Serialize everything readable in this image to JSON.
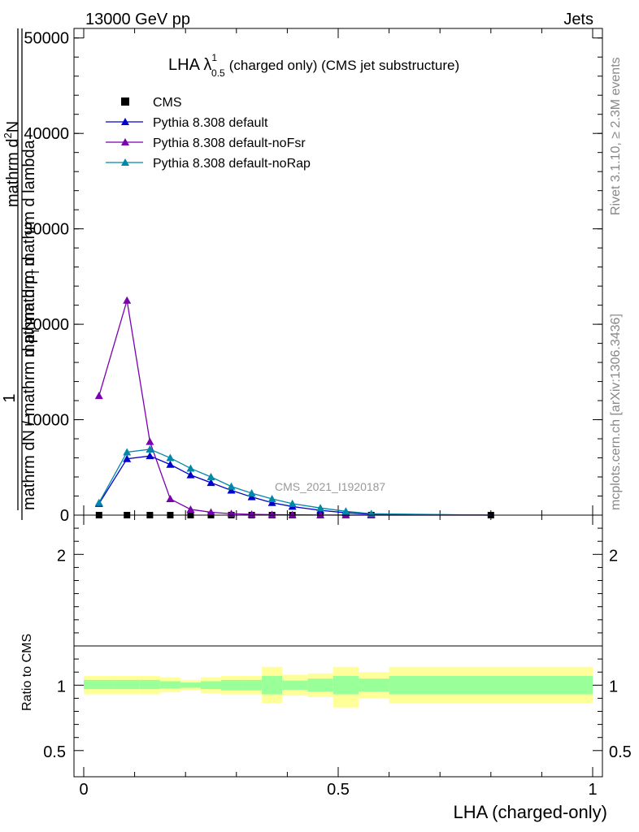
{
  "header": {
    "left": "13000 GeV pp",
    "right": "Jets"
  },
  "side": {
    "rivet": "Rivet 3.1.10, ≥ 2.3M events",
    "mcplots": "mcplots.cern.ch [arXiv:1306.3436]"
  },
  "colors": {
    "cms": "#000000",
    "default": "#0000cc",
    "noFsr": "#7a00b0",
    "noRap": "#0088aa",
    "band_inner": "#99ff99",
    "band_outer": "#ffff99"
  },
  "chart_data": [
    {
      "type": "line",
      "panel": "main",
      "title": "LHA λ",
      "title_sup": "1",
      "title_sub": "0.5",
      "title_rest": "(charged only) (CMS jet substructure)",
      "watermark": "CMS_2021_I1920187",
      "ylabel_numerator": "1",
      "ylabel_denominator": "mathrm dN / mathrm d p",
      "ylabel_denominator_sub": "T",
      "ylabel_denominator_rest": "mathrm d",
      "ylabel_mid": "mathrm d",
      "ylabel_mid_sup": "2",
      "ylabel_top": "N",
      "ylabel_main": "mathrm d p",
      "ylabel_main_sub": "T",
      "ylabel_main_rest": "mathrm d lambda",
      "ylim": [
        0,
        51000
      ],
      "xlim": [
        0,
        1
      ],
      "yticks": [
        {
          "v": 0,
          "label": "0"
        },
        {
          "v": 10000,
          "label": "10000"
        },
        {
          "v": 20000,
          "label": "20000"
        },
        {
          "v": 30000,
          "label": "30000"
        },
        {
          "v": 40000,
          "label": "40000"
        },
        {
          "v": 50000,
          "label": "50000"
        }
      ],
      "legend_position": "top-left",
      "series": [
        {
          "name": "CMS",
          "marker": "square",
          "x": [
            0.03,
            0.085,
            0.13,
            0.17,
            0.21,
            0.25,
            0.29,
            0.33,
            0.37,
            0.41,
            0.465,
            0.515,
            0.565,
            0.8
          ],
          "y": [
            0,
            0,
            0,
            0,
            0,
            0,
            0,
            0,
            0,
            0,
            0,
            0,
            0,
            0
          ]
        },
        {
          "name": "Pythia 8.308 default",
          "marker": "triangle",
          "x": [
            0.03,
            0.085,
            0.13,
            0.17,
            0.21,
            0.25,
            0.29,
            0.33,
            0.37,
            0.41,
            0.465,
            0.515,
            0.565,
            0.8
          ],
          "y": [
            1200,
            5900,
            6200,
            5300,
            4200,
            3400,
            2600,
            1900,
            1300,
            900,
            500,
            250,
            100,
            0
          ]
        },
        {
          "name": "Pythia 8.308 default-noFsr",
          "marker": "triangle",
          "x": [
            0.03,
            0.085,
            0.13,
            0.17,
            0.21,
            0.25,
            0.29,
            0.33,
            0.37,
            0.41,
            0.465,
            0.515,
            0.565,
            0.8
          ],
          "y": [
            12500,
            22500,
            7700,
            1700,
            600,
            300,
            150,
            80,
            50,
            30,
            10,
            5,
            0,
            0
          ]
        },
        {
          "name": "Pythia 8.308 default-noRap",
          "marker": "triangle",
          "x": [
            0.03,
            0.085,
            0.13,
            0.17,
            0.21,
            0.25,
            0.29,
            0.33,
            0.37,
            0.41,
            0.465,
            0.515,
            0.565,
            0.8
          ],
          "y": [
            1300,
            6600,
            6900,
            6000,
            4900,
            4000,
            3000,
            2300,
            1700,
            1200,
            750,
            400,
            150,
            0
          ]
        }
      ]
    },
    {
      "type": "area",
      "panel": "ratio",
      "ylabel": "Ratio to CMS",
      "xlabel": "LHA (charged-only)",
      "ylim": [
        0.3,
        2.3
      ],
      "xlim": [
        0,
        1
      ],
      "yticks": [
        {
          "v": 0.5,
          "label": "0.5"
        },
        {
          "v": 1,
          "label": "1"
        },
        {
          "v": 2,
          "label": "2"
        }
      ],
      "xticks": [
        {
          "v": 0,
          "label": "0"
        },
        {
          "v": 0.5,
          "label": "0.5"
        },
        {
          "v": 1,
          "label": "1"
        }
      ],
      "bins": [
        {
          "x0": 0.0,
          "x1": 0.06,
          "inner": [
            0.97,
            1.04
          ],
          "outer": [
            0.93,
            1.07
          ]
        },
        {
          "x0": 0.06,
          "x1": 0.11,
          "inner": [
            0.97,
            1.04
          ],
          "outer": [
            0.93,
            1.07
          ]
        },
        {
          "x0": 0.11,
          "x1": 0.15,
          "inner": [
            0.97,
            1.04
          ],
          "outer": [
            0.93,
            1.07
          ]
        },
        {
          "x0": 0.15,
          "x1": 0.19,
          "inner": [
            0.975,
            1.03
          ],
          "outer": [
            0.945,
            1.06
          ]
        },
        {
          "x0": 0.19,
          "x1": 0.23,
          "inner": [
            0.98,
            1.02
          ],
          "outer": [
            0.96,
            1.04
          ]
        },
        {
          "x0": 0.23,
          "x1": 0.27,
          "inner": [
            0.97,
            1.03
          ],
          "outer": [
            0.94,
            1.06
          ]
        },
        {
          "x0": 0.27,
          "x1": 0.31,
          "inner": [
            0.96,
            1.04
          ],
          "outer": [
            0.93,
            1.07
          ]
        },
        {
          "x0": 0.31,
          "x1": 0.35,
          "inner": [
            0.96,
            1.04
          ],
          "outer": [
            0.93,
            1.07
          ]
        },
        {
          "x0": 0.35,
          "x1": 0.39,
          "inner": [
            0.93,
            1.07
          ],
          "outer": [
            0.86,
            1.14
          ]
        },
        {
          "x0": 0.39,
          "x1": 0.44,
          "inner": [
            0.965,
            1.035
          ],
          "outer": [
            0.92,
            1.08
          ]
        },
        {
          "x0": 0.44,
          "x1": 0.49,
          "inner": [
            0.95,
            1.05
          ],
          "outer": [
            0.91,
            1.09
          ]
        },
        {
          "x0": 0.49,
          "x1": 0.54,
          "inner": [
            0.93,
            1.07
          ],
          "outer": [
            0.83,
            1.14
          ]
        },
        {
          "x0": 0.54,
          "x1": 0.6,
          "inner": [
            0.95,
            1.05
          ],
          "outer": [
            0.9,
            1.1
          ]
        },
        {
          "x0": 0.6,
          "x1": 1.0,
          "inner": [
            0.93,
            1.07
          ],
          "outer": [
            0.86,
            1.14
          ]
        }
      ]
    }
  ]
}
